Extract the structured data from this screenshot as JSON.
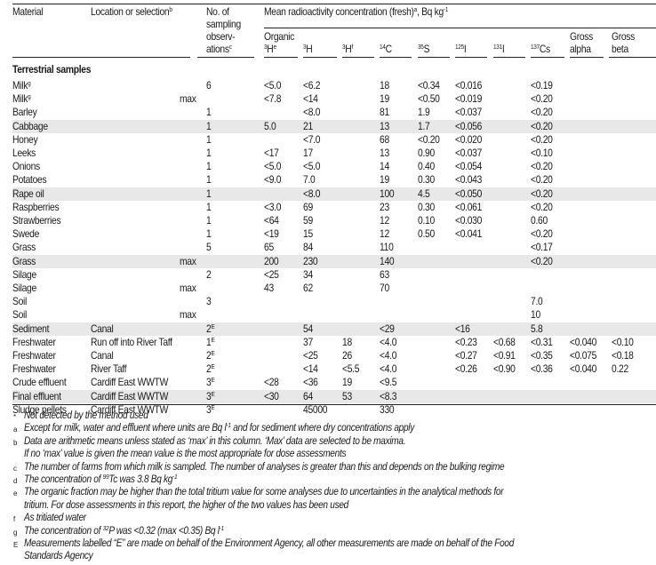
{
  "header": {
    "material": "Material",
    "location": "Location or selection",
    "location_sup": "b",
    "obs_lines": [
      "No. of",
      "sampling",
      "observ-",
      "ations"
    ],
    "obs_sup": "c",
    "group": "Mean radioactivity concentration (fresh)",
    "group_sup": "a",
    "group_unit": ", Bq kg",
    "group_unit_sup": "-1",
    "organic": "Organic",
    "cols": [
      {
        "pre": "3",
        "label": "H",
        "sup": "e"
      },
      {
        "pre": "3",
        "label": "H",
        "sup": ""
      },
      {
        "pre": "3",
        "label": "H",
        "sup": "f"
      },
      {
        "pre": "14",
        "label": "C",
        "sup": ""
      },
      {
        "pre": "35",
        "label": "S",
        "sup": ""
      },
      {
        "pre": "125",
        "label": "I",
        "sup": ""
      },
      {
        "pre": "131",
        "label": "I",
        "sup": ""
      },
      {
        "pre": "137",
        "label": "Cs",
        "sup": ""
      }
    ],
    "gross_alpha": [
      "Gross",
      "alpha"
    ],
    "gross_beta": [
      "Gross",
      "beta"
    ]
  },
  "section": "Terrestrial samples",
  "rows": [
    {
      "material": "Milk",
      "msup": "g",
      "location": "",
      "sel": "",
      "obs": "6",
      "osup": "",
      "v": [
        "<5.0",
        "<6.2",
        "",
        "18",
        "<0.34",
        "<0.016",
        "",
        "<0.19",
        "",
        ""
      ],
      "shade": false
    },
    {
      "material": "Milk",
      "msup": "g",
      "location": "",
      "sel": "max",
      "obs": "",
      "osup": "",
      "v": [
        "<7.8",
        "<14",
        "",
        "19",
        "<0.50",
        "<0.019",
        "",
        "<0.20",
        "",
        ""
      ],
      "shade": false
    },
    {
      "material": "Barley",
      "msup": "",
      "location": "",
      "sel": "",
      "obs": "1",
      "osup": "",
      "v": [
        "",
        "<8.0",
        "",
        "81",
        "1.9",
        "<0.037",
        "",
        "<0.20",
        "",
        ""
      ],
      "shade": false
    },
    {
      "material": "Cabbage",
      "msup": "",
      "location": "",
      "sel": "",
      "obs": "1",
      "osup": "",
      "v": [
        "5.0",
        "21",
        "",
        "13",
        "1.7",
        "<0.056",
        "",
        "<0.20",
        "",
        ""
      ],
      "shade": true
    },
    {
      "material": "Honey",
      "msup": "",
      "location": "",
      "sel": "",
      "obs": "1",
      "osup": "",
      "v": [
        "",
        "<7.0",
        "",
        "68",
        "<0.20",
        "<0.020",
        "",
        "<0.20",
        "",
        ""
      ],
      "shade": false
    },
    {
      "material": "Leeks",
      "msup": "",
      "location": "",
      "sel": "",
      "obs": "1",
      "osup": "",
      "v": [
        "<17",
        "17",
        "",
        "13",
        "0.90",
        "<0.037",
        "",
        "<0.10",
        "",
        ""
      ],
      "shade": false
    },
    {
      "material": "Onions",
      "msup": "",
      "location": "",
      "sel": "",
      "obs": "1",
      "osup": "",
      "v": [
        "<5.0",
        "<5.0",
        "",
        "14",
        "0.40",
        "<0.054",
        "",
        "<0.20",
        "",
        ""
      ],
      "shade": false
    },
    {
      "material": "Potatoes",
      "msup": "",
      "location": "",
      "sel": "",
      "obs": "1",
      "osup": "",
      "v": [
        "<9.0",
        "7.0",
        "",
        "19",
        "0.30",
        "<0.043",
        "",
        "<0.20",
        "",
        ""
      ],
      "shade": false
    },
    {
      "material": "Rape oil",
      "msup": "",
      "location": "",
      "sel": "",
      "obs": "1",
      "osup": "",
      "v": [
        "",
        "<8.0",
        "",
        "100",
        "4.5",
        "<0.050",
        "",
        "<0.20",
        "",
        ""
      ],
      "shade": true
    },
    {
      "material": "Raspberries",
      "msup": "",
      "location": "",
      "sel": "",
      "obs": "1",
      "osup": "",
      "v": [
        "<3.0",
        "69",
        "",
        "23",
        "0.30",
        "<0.061",
        "",
        "<0.20",
        "",
        ""
      ],
      "shade": false
    },
    {
      "material": "Strawberries",
      "msup": "",
      "location": "",
      "sel": "",
      "obs": "1",
      "osup": "",
      "v": [
        "<64",
        "59",
        "",
        "12",
        "0.10",
        "<0.030",
        "",
        "0.60",
        "",
        ""
      ],
      "shade": false
    },
    {
      "material": "Swede",
      "msup": "",
      "location": "",
      "sel": "",
      "obs": "1",
      "osup": "",
      "v": [
        "<19",
        "15",
        "",
        "12",
        "0.50",
        "<0.041",
        "",
        "<0.20",
        "",
        ""
      ],
      "shade": false
    },
    {
      "material": "Grass",
      "msup": "",
      "location": "",
      "sel": "",
      "obs": "5",
      "osup": "",
      "v": [
        "65",
        "84",
        "",
        "110",
        "",
        "",
        "",
        "<0.17",
        "",
        ""
      ],
      "shade": false
    },
    {
      "material": "Grass",
      "msup": "",
      "location": "",
      "sel": "max",
      "obs": "",
      "osup": "",
      "v": [
        "200",
        "230",
        "",
        "140",
        "",
        "",
        "",
        "<0.20",
        "",
        ""
      ],
      "shade": true
    },
    {
      "material": "Silage",
      "msup": "",
      "location": "",
      "sel": "",
      "obs": "2",
      "osup": "",
      "v": [
        "<25",
        "34",
        "",
        "63",
        "",
        "",
        "",
        "",
        "",
        ""
      ],
      "shade": false
    },
    {
      "material": "Silage",
      "msup": "",
      "location": "",
      "sel": "max",
      "obs": "",
      "osup": "",
      "v": [
        "43",
        "62",
        "",
        "70",
        "",
        "",
        "",
        "",
        "",
        ""
      ],
      "shade": false
    },
    {
      "material": "Soil",
      "msup": "",
      "location": "",
      "sel": "",
      "obs": "3",
      "osup": "",
      "v": [
        "",
        "",
        "",
        "",
        "",
        "",
        "",
        "7.0",
        "",
        ""
      ],
      "shade": false
    },
    {
      "material": "Soil",
      "msup": "",
      "location": "",
      "sel": "max",
      "obs": "",
      "osup": "",
      "v": [
        "",
        "",
        "",
        "",
        "",
        "",
        "",
        "10",
        "",
        ""
      ],
      "shade": false
    },
    {
      "material": "Sediment",
      "msup": "",
      "location": "Canal",
      "sel": "",
      "obs": "2",
      "osup": "E",
      "v": [
        "",
        "54",
        "",
        "<29",
        "",
        "<16",
        "",
        "5.8",
        "",
        ""
      ],
      "shade": true
    },
    {
      "material": "Freshwater",
      "msup": "",
      "location": "Run off into River Taff",
      "sel": "",
      "obs": "1",
      "osup": "E",
      "v": [
        "",
        "37",
        "18",
        "<4.0",
        "",
        "<0.23",
        "<0.68",
        "<0.31",
        "<0.040",
        "<0.10"
      ],
      "shade": false
    },
    {
      "material": "Freshwater",
      "msup": "",
      "location": "Canal",
      "sel": "",
      "obs": "2",
      "osup": "E",
      "v": [
        "",
        "<25",
        "26",
        "<4.0",
        "",
        "<0.27",
        "<0.91",
        "<0.35",
        "<0.075",
        "<0.18"
      ],
      "shade": false
    },
    {
      "material": "Freshwater",
      "msup": "",
      "location": "River Taff",
      "sel": "",
      "obs": "2",
      "osup": "E",
      "v": [
        "",
        "<14",
        "<5.5",
        "<4.0",
        "",
        "<0.26",
        "<0.90",
        "<0.36",
        "<0.040",
        "0.22"
      ],
      "shade": false
    },
    {
      "material": "Crude effluent",
      "msup": "",
      "location": "Cardiff East WWTW",
      "sel": "",
      "obs": "3",
      "osup": "E",
      "v": [
        "<28",
        "<36",
        "19",
        "<9.5",
        "",
        "",
        "",
        "",
        "",
        ""
      ],
      "shade": false
    },
    {
      "material": "Final effluent",
      "msup": "",
      "location": "Cardiff East WWTW",
      "sel": "",
      "obs": "3",
      "osup": "E",
      "v": [
        "<30",
        "64",
        "53",
        "<8.3",
        "",
        "",
        "",
        "",
        "",
        ""
      ],
      "shade": true
    },
    {
      "material": "Sludge pellets",
      "msup": "",
      "location": "Cardiff East WWTW",
      "sel": "",
      "obs": "3",
      "osup": "E",
      "v": [
        "",
        "45000",
        "",
        "330",
        "",
        "",
        "",
        "",
        "",
        ""
      ],
      "shade": false
    }
  ],
  "footnotes": [
    {
      "mark": "*",
      "parts": [
        {
          "t": "Not detected by the method used"
        }
      ]
    },
    {
      "mark": "a",
      "parts": [
        {
          "t": "Except for milk, water and effluent where units are Bq l"
        },
        {
          "s": "-1"
        },
        {
          "t": " and for sediment where dry concentrations apply"
        }
      ]
    },
    {
      "mark": "b",
      "parts": [
        {
          "t": "Data are arithmetic means unless stated as ‘max’ in this column. ‘Max’ data are selected to be maxima."
        }
      ]
    },
    {
      "mark": "",
      "parts": [
        {
          "t": "If no ‘max’ value is given the mean value is the most appropriate for dose assessments"
        }
      ]
    },
    {
      "mark": "c",
      "parts": [
        {
          "t": "The number of farms from which milk is sampled. The number of analyses is greater than this and depends on the bulking regime"
        }
      ]
    },
    {
      "mark": "d",
      "parts": [
        {
          "t": "The concentration of "
        },
        {
          "s": "99"
        },
        {
          "t": "Tc was 3.8 Bq kg"
        },
        {
          "s": "-1"
        }
      ]
    },
    {
      "mark": "e",
      "parts": [
        {
          "t": "The organic fraction may be higher than the total tritium value for some analyses due to uncertainties in the analytical methods for"
        }
      ]
    },
    {
      "mark": "",
      "parts": [
        {
          "t": "tritium. For dose assessments in this report, the higher of the two values has been used"
        }
      ]
    },
    {
      "mark": "f",
      "parts": [
        {
          "t": "As tritiated water"
        }
      ]
    },
    {
      "mark": "g",
      "parts": [
        {
          "t": "The concentration of "
        },
        {
          "s": "32"
        },
        {
          "t": "P was <0.32 (max <0.35) Bq l"
        },
        {
          "s": "-1"
        }
      ]
    },
    {
      "mark": "E",
      "parts": [
        {
          "t": "Measurements labelled “E” are made on behalf of the Environment Agency, all other measurements are made on behalf of the Food"
        }
      ]
    },
    {
      "mark": "",
      "parts": [
        {
          "t": "Standards Agency"
        }
      ]
    }
  ]
}
